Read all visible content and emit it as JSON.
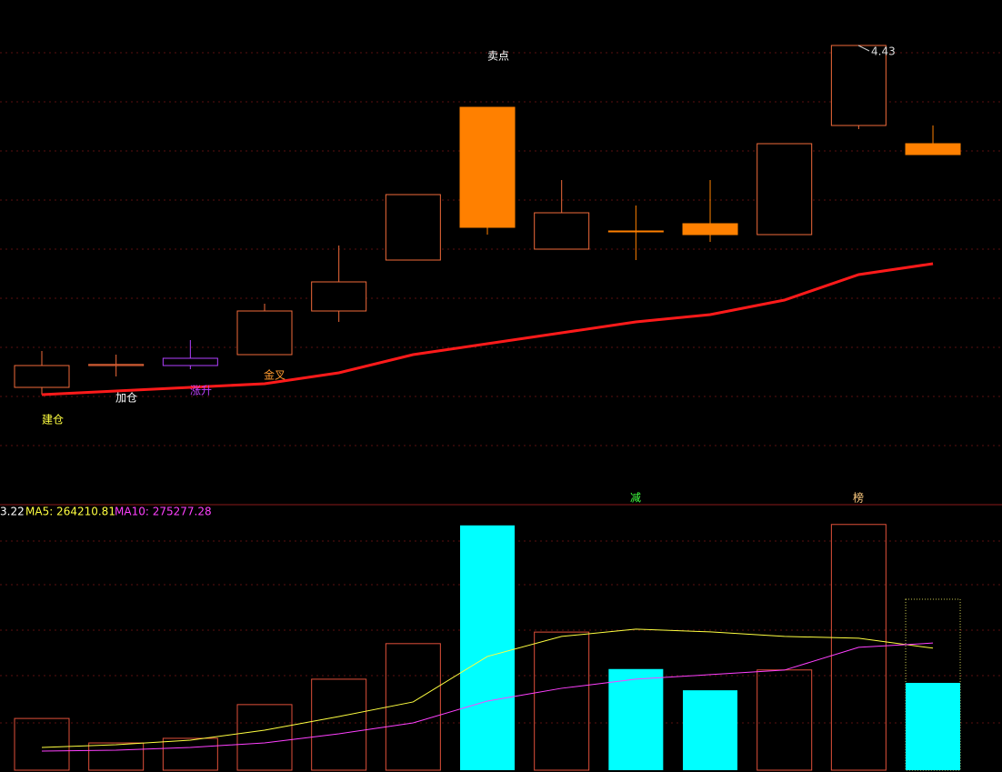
{
  "chart_data": [
    {
      "type": "candlestick",
      "open": [
        3.49,
        3.55,
        3.55,
        3.58,
        3.7,
        3.84,
        4.26,
        3.87,
        3.92,
        3.94,
        3.91,
        4.21,
        4.16
      ],
      "high": [
        3.59,
        3.58,
        3.62,
        3.72,
        3.88,
        4.02,
        4.26,
        4.06,
        3.99,
        4.06,
        4.16,
        4.43,
        4.21
      ],
      "low": [
        3.47,
        3.52,
        3.54,
        3.58,
        3.67,
        3.84,
        3.91,
        3.87,
        3.84,
        3.89,
        3.91,
        4.2,
        4.13
      ],
      "close": [
        3.55,
        3.553,
        3.57,
        3.7,
        3.78,
        4.02,
        3.93,
        3.97,
        3.92,
        3.91,
        4.16,
        4.43,
        4.13
      ],
      "colors": [
        "#f06a3a",
        "#f06a3a",
        "#b040ff",
        "#f06a3a",
        "#f06a3a",
        "#f06a3a",
        "#ff8000",
        "#f06a3a",
        "#ff8000",
        "#ff8000",
        "#f06a3a",
        "#f06a3a",
        "#ff8000"
      ],
      "ylim": [
        3.1675,
        4.555
      ],
      "ma": {
        "color": "#ff1a1a",
        "values": [
          3.47,
          3.48,
          3.49,
          3.5,
          3.53,
          3.58,
          3.61,
          3.64,
          3.67,
          3.69,
          3.73,
          3.8,
          3.83
        ]
      },
      "annotations": [
        "建仓",
        "加仓",
        "涨升",
        "金叉",
        "卖点"
      ],
      "max_label": "4.43"
    },
    {
      "type": "volume",
      "values": [
        112000,
        59000,
        69000,
        142000,
        197000,
        274000,
        530000,
        299000,
        219000,
        173000,
        217000,
        532000,
        189000
      ],
      "projected_values": [
        null,
        null,
        null,
        null,
        null,
        null,
        null,
        null,
        null,
        null,
        null,
        null,
        370000
      ],
      "series": [
        {
          "color": "#ffff40",
          "values": [
            49250,
            55160,
            65010,
            86680,
            116230,
            147750,
            246250,
            289590,
            305350,
            299440,
            289590,
            285650,
            264210.81
          ]
        },
        {
          "color": "#ff40ff",
          "values": [
            41370,
            43340,
            49250,
            59100,
            78800,
            102440,
            149720,
            177300,
            197000,
            206850,
            216700,
            265950,
            275277.28
          ]
        }
      ],
      "legend": [
        "3.22",
        "MA5: 264210.81",
        "MA10: 275277.28"
      ],
      "signals": [
        "减",
        "榜"
      ],
      "ylim": [
        0,
        565000
      ]
    }
  ]
}
